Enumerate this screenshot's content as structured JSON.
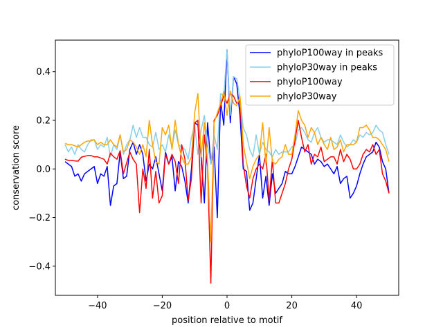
{
  "chart_data": {
    "type": "line",
    "xlabel": "position relative to motif",
    "ylabel": "conservation score",
    "xlim": [
      -53,
      53
    ],
    "ylim": [
      -0.52,
      0.53
    ],
    "xticks": [
      -40,
      -20,
      0,
      20,
      40
    ],
    "xtick_labels": [
      "−40",
      "−20",
      "0",
      "20",
      "40"
    ],
    "yticks": [
      -0.4,
      -0.2,
      0.0,
      0.2,
      0.4
    ],
    "ytick_labels": [
      "−0.4",
      "−0.2",
      "0.0",
      "0.2",
      "0.4"
    ],
    "grid": false,
    "legend_position": "top-right",
    "x": [
      -50,
      -49,
      -48,
      -47,
      -46,
      -45,
      -44,
      -43,
      -42,
      -41,
      -40,
      -39,
      -38,
      -37,
      -36,
      -35,
      -34,
      -33,
      -32,
      -31,
      -30,
      -29,
      -28,
      -27,
      -26,
      -25,
      -24,
      -23,
      -22,
      -21,
      -20,
      -19,
      -18,
      -17,
      -16,
      -15,
      -14,
      -13,
      -12,
      -11,
      -10,
      -9,
      -8,
      -7,
      -6,
      -5,
      -4,
      -3,
      -2,
      -1,
      0,
      1,
      2,
      3,
      4,
      5,
      6,
      7,
      8,
      9,
      10,
      11,
      12,
      13,
      14,
      15,
      16,
      17,
      18,
      19,
      20,
      21,
      22,
      23,
      24,
      25,
      26,
      27,
      28,
      29,
      30,
      31,
      32,
      33,
      34,
      35,
      36,
      37,
      38,
      39,
      40,
      41,
      42,
      43,
      44,
      45,
      46,
      47,
      48,
      49,
      50
    ],
    "series": [
      {
        "name": "phyloP100way in peaks",
        "color": "#0000ff",
        "values": [
          0.03,
          0.02,
          0.01,
          -0.03,
          -0.02,
          -0.05,
          -0.02,
          -0.01,
          0.0,
          0.01,
          -0.06,
          -0.02,
          -0.03,
          0.01,
          -0.15,
          -0.07,
          -0.06,
          0.07,
          -0.04,
          -0.03,
          0.08,
          0.11,
          0.06,
          0.1,
          0.06,
          -0.05,
          0.02,
          0.0,
          0.05,
          -0.02,
          -0.09,
          0.07,
          0.02,
          0.05,
          -0.09,
          0.03,
          0.01,
          -0.05,
          -0.14,
          0.0,
          0.19,
          0.18,
          0.05,
          -0.14,
          0.19,
          0.02,
          0.09,
          -0.2,
          0.28,
          0.18,
          0.49,
          0.19,
          0.38,
          0.35,
          0.22,
          0.0,
          -0.01,
          -0.17,
          -0.14,
          -0.04,
          0.06,
          -0.12,
          -0.03,
          -0.15,
          -0.02,
          -0.1,
          -0.08,
          -0.06,
          -0.01,
          -0.02,
          -0.02,
          0.01,
          0.05,
          0.09,
          0.08,
          0.07,
          0.06,
          0.02,
          0.04,
          0.03,
          0.01,
          0.02,
          0.0,
          -0.02,
          0.01,
          -0.06,
          -0.04,
          -0.03,
          -0.12,
          -0.1,
          -0.07,
          -0.02,
          0.02,
          0.05,
          0.06,
          0.07,
          0.11,
          0.09,
          0.03,
          0.0,
          -0.1
        ]
      },
      {
        "name": "phyloP30way in peaks",
        "color": "#87ceeb",
        "values": [
          0.1,
          0.07,
          0.09,
          0.06,
          0.1,
          0.08,
          0.07,
          0.1,
          0.12,
          0.12,
          0.08,
          0.1,
          0.09,
          0.13,
          0.05,
          0.1,
          0.08,
          0.14,
          0.06,
          0.1,
          0.12,
          0.18,
          0.13,
          0.17,
          0.13,
          0.13,
          0.1,
          0.09,
          0.15,
          0.08,
          0.1,
          0.07,
          0.14,
          0.09,
          0.16,
          0.1,
          0.09,
          0.08,
          0.04,
          0.13,
          0.18,
          0.06,
          0.16,
          0.22,
          0.1,
          0.02,
          0.14,
          0.08,
          0.31,
          0.3,
          0.49,
          0.22,
          0.38,
          0.37,
          0.29,
          0.17,
          0.14,
          0.08,
          0.05,
          0.14,
          0.06,
          0.11,
          0.08,
          0.07,
          0.05,
          0.08,
          0.06,
          0.07,
          0.07,
          0.07,
          0.09,
          0.1,
          0.16,
          0.17,
          0.15,
          0.12,
          0.11,
          0.15,
          0.17,
          0.13,
          0.11,
          0.12,
          0.12,
          0.11,
          0.1,
          0.14,
          0.11,
          0.09,
          0.1,
          0.12,
          0.11,
          0.14,
          0.13,
          0.15,
          0.14,
          0.15,
          0.18,
          0.16,
          0.15,
          0.1,
          0.06
        ]
      },
      {
        "name": "phyloP100way",
        "color": "#ff0000",
        "values": [
          0.04,
          0.035,
          0.035,
          0.033,
          0.032,
          0.048,
          0.052,
          0.055,
          0.055,
          0.05,
          0.05,
          0.045,
          0.04,
          0.02,
          0.065,
          0.05,
          0.04,
          0.075,
          -0.02,
          0.025,
          0.07,
          0.04,
          0.02,
          -0.18,
          0.0,
          -0.08,
          0.08,
          -0.12,
          -0.01,
          -0.14,
          -0.11,
          0.06,
          0.02,
          0.06,
          0.03,
          -0.06,
          0.1,
          0.04,
          -0.13,
          -0.04,
          0.19,
          0.2,
          -0.14,
          0.14,
          0.01,
          -0.47,
          0.2,
          0.22,
          0.26,
          0.3,
          0.27,
          0.31,
          0.3,
          0.27,
          0.28,
          0.02,
          -0.07,
          -0.12,
          -0.04,
          0.0,
          0.02,
          0.0,
          0.06,
          -0.13,
          0.04,
          -0.14,
          -0.14,
          -0.1,
          -0.06,
          0.0,
          0.04,
          0.12,
          0.2,
          0.13,
          0.07,
          0.1,
          0.02,
          0.06,
          0.05,
          0.09,
          0.03,
          0.04,
          0.05,
          0.05,
          0.02,
          0.08,
          0.03,
          0.06,
          0.04,
          0.0,
          0.0,
          0.02,
          0.06,
          0.08,
          0.07,
          0.1,
          0.06,
          0.08,
          -0.02,
          -0.05,
          -0.1
        ]
      },
      {
        "name": "phyloP30way",
        "color": "#ffa500",
        "values": [
          0.105,
          0.1,
          0.1,
          0.095,
          0.09,
          0.1,
          0.11,
          0.115,
          0.115,
          0.12,
          0.1,
          0.11,
          0.1,
          0.1,
          0.12,
          0.1,
          0.09,
          0.14,
          0.07,
          0.08,
          0.12,
          0.11,
          0.09,
          0.06,
          0.1,
          0.05,
          0.2,
          0.1,
          0.03,
          0.02,
          0.17,
          0.14,
          0.18,
          0.08,
          0.2,
          0.1,
          0.05,
          0.02,
          0.02,
          0.05,
          0.23,
          0.31,
          0.05,
          0.19,
          0.03,
          -0.3,
          0.19,
          0.23,
          0.27,
          0.32,
          0.22,
          0.32,
          0.27,
          0.26,
          0.3,
          0.1,
          0.03,
          -0.04,
          0.01,
          0.04,
          0.06,
          0.19,
          0.02,
          0.17,
          0.03,
          0.02,
          0.04,
          0.05,
          0.1,
          0.06,
          0.06,
          0.14,
          0.24,
          0.2,
          0.18,
          0.13,
          0.17,
          0.15,
          0.1,
          0.13,
          0.1,
          0.08,
          0.13,
          0.08,
          0.09,
          0.12,
          0.07,
          0.1,
          0.1,
          0.1,
          0.11,
          0.17,
          0.17,
          0.18,
          0.16,
          0.13,
          0.13,
          0.12,
          0.1,
          0.08,
          0.03
        ]
      }
    ]
  }
}
